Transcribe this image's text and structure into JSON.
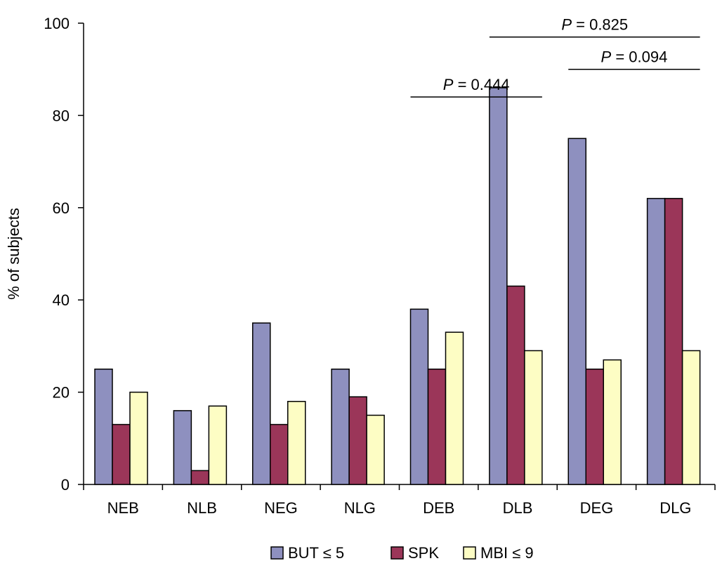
{
  "chart_data": {
    "type": "bar",
    "title": "",
    "xlabel": "",
    "ylabel": "% of subjects",
    "ylim": [
      0,
      100
    ],
    "yticks": [
      0,
      20,
      40,
      60,
      80,
      100
    ],
    "grid": false,
    "legend_position": "bottom",
    "categories": [
      "NEB",
      "NLB",
      "NEG",
      "NLG",
      "DEB",
      "DLB",
      "DEG",
      "DLG"
    ],
    "series": [
      {
        "name": "BUT ≤ 5",
        "color": "#8e90bf",
        "values": [
          25,
          16,
          35,
          25,
          38,
          86,
          75,
          62
        ]
      },
      {
        "name": "SPK",
        "color": "#9b3659",
        "values": [
          13,
          3,
          13,
          19,
          25,
          43,
          25,
          62
        ]
      },
      {
        "name": "MBI ≤ 9",
        "color": "#fdfdc4",
        "values": [
          20,
          17,
          18,
          15,
          33,
          29,
          27,
          29
        ]
      }
    ],
    "annotations": [
      {
        "p_label": "P",
        "text": " = 0.444",
        "from_category": "DEB",
        "to_category": "DLB",
        "level": 84
      },
      {
        "p_label": "P",
        "text": " = 0.825",
        "from_category": "DLB",
        "to_category": "DLG",
        "level": 97
      },
      {
        "p_label": "P",
        "text": " = 0.094",
        "from_category": "DEG",
        "to_category": "DLG",
        "level": 90
      }
    ]
  }
}
